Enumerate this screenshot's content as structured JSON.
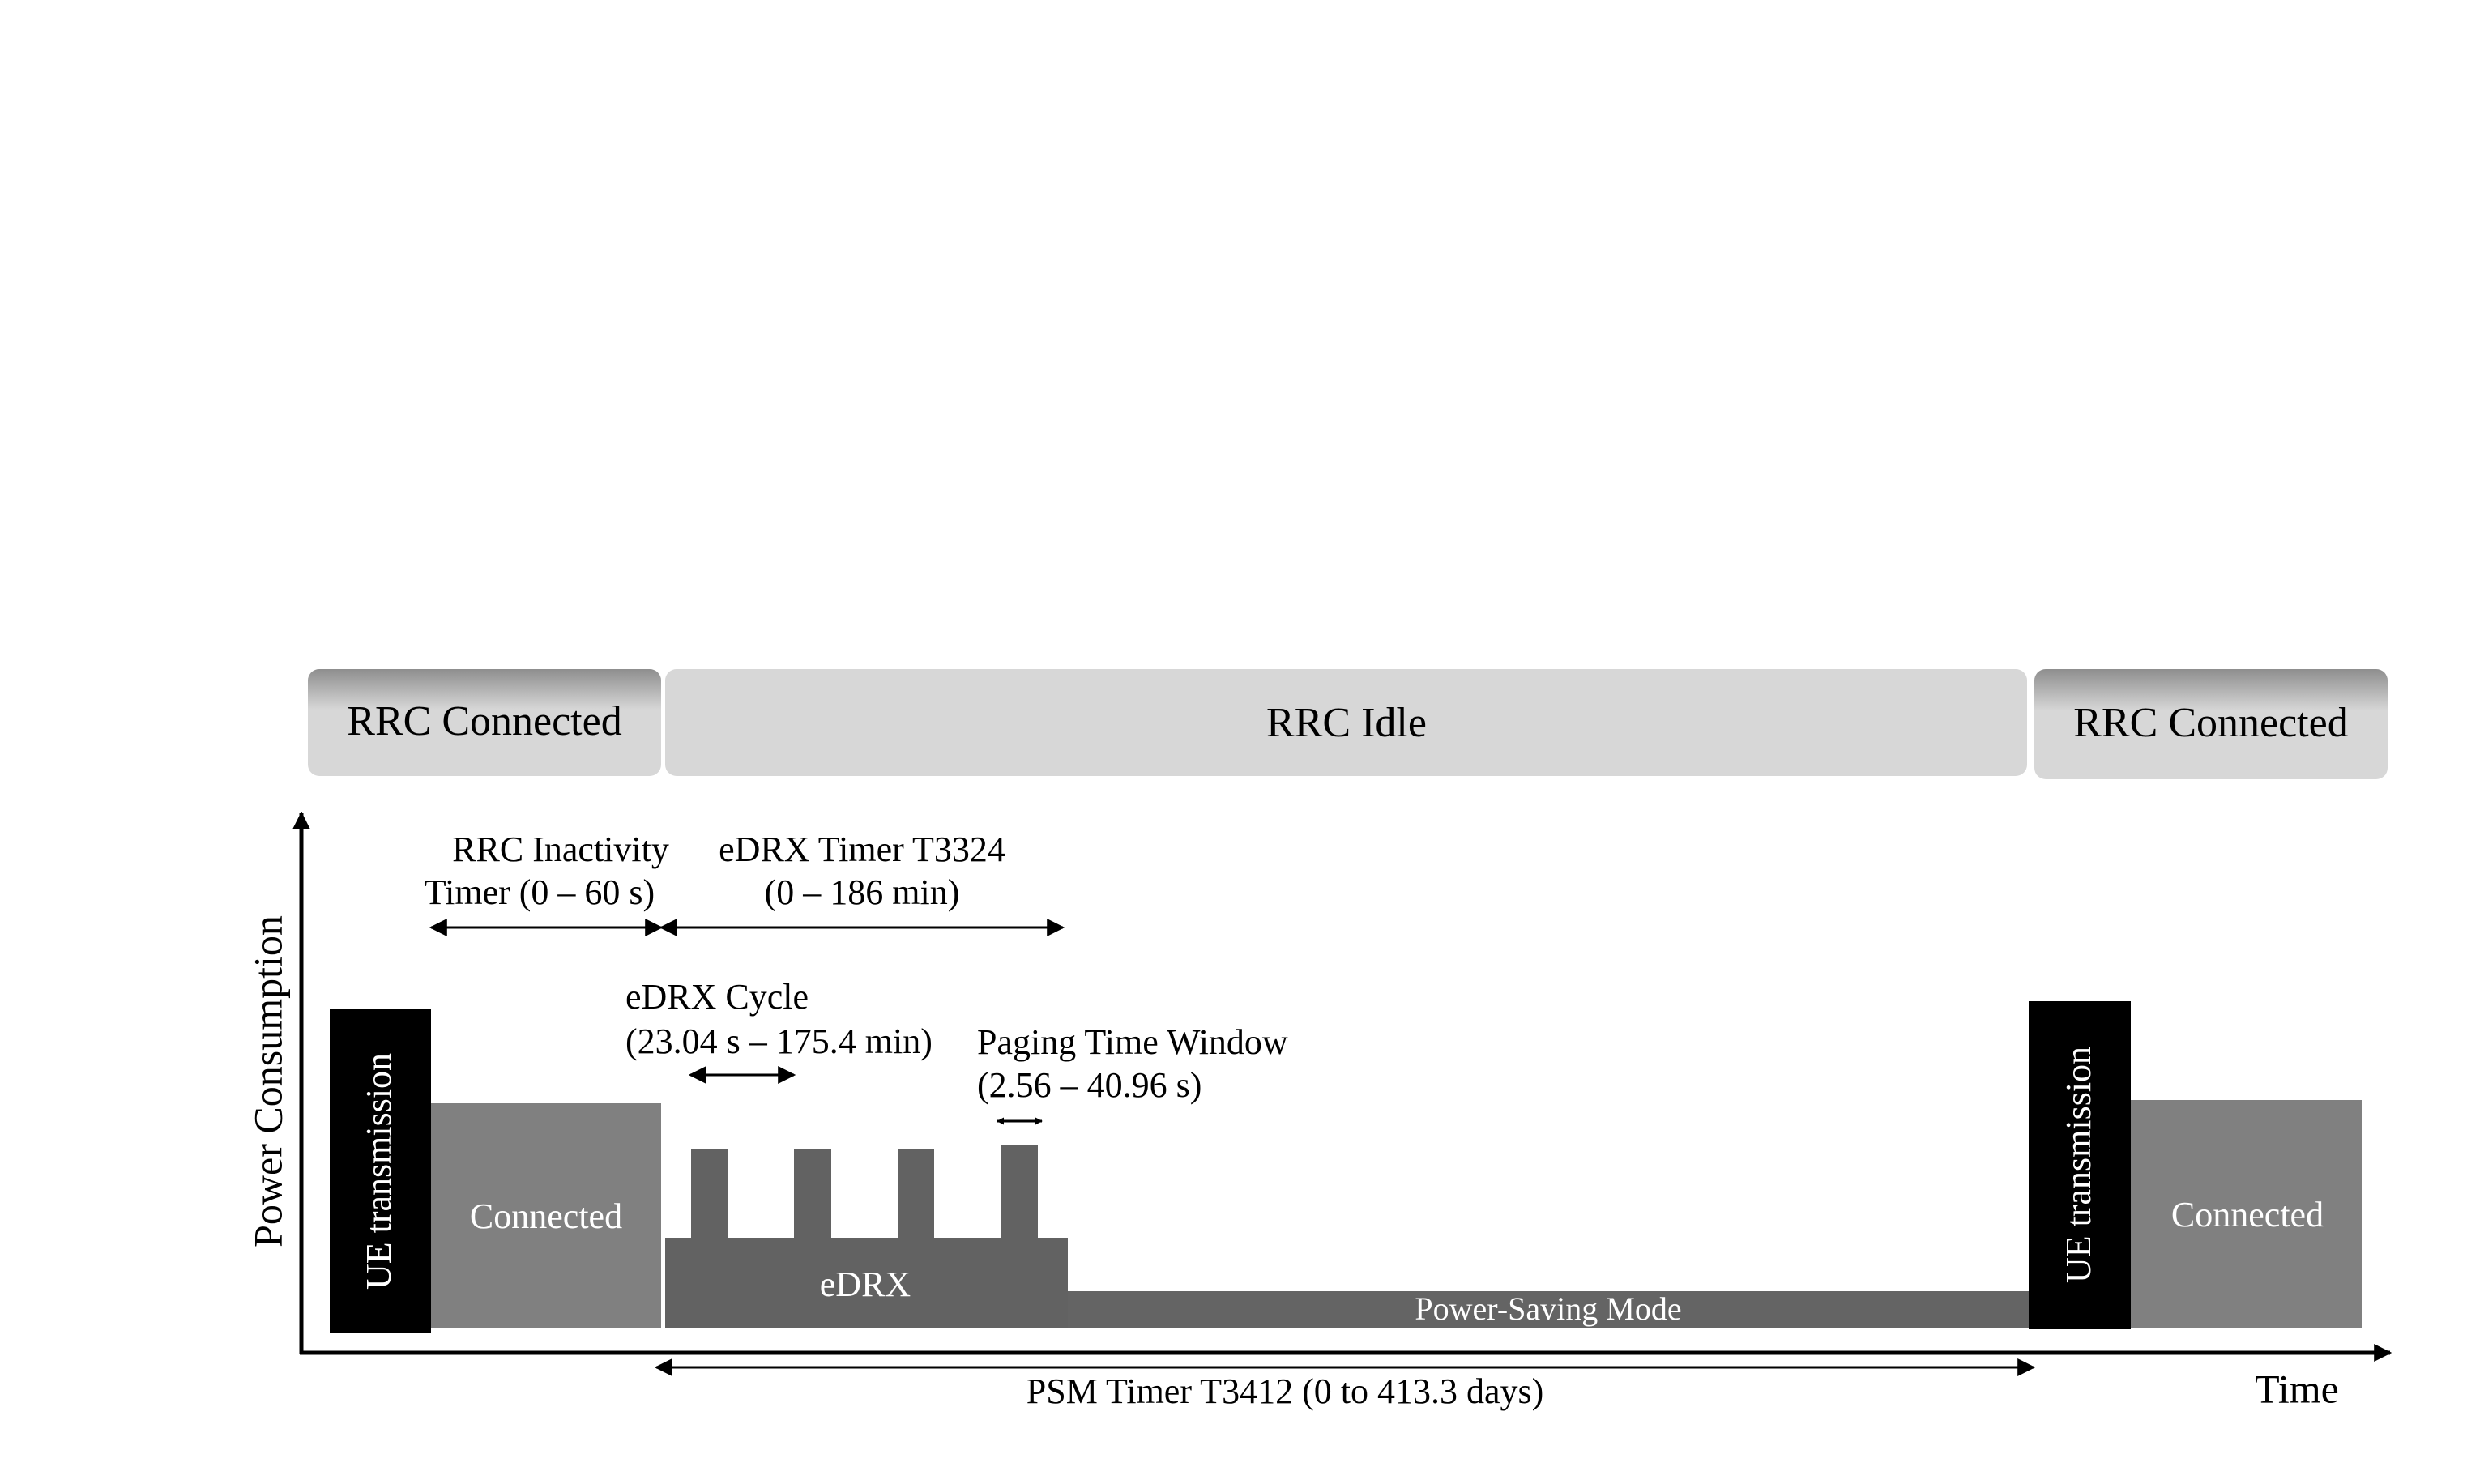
{
  "colors": {
    "header_light": "#d7d7d7",
    "header_dark": "#8e8e8e",
    "ue_block": "#000000",
    "connected_block": "#808080",
    "edrx_block": "#626262",
    "psm_block": "#646464",
    "axis": "#000000",
    "white_text": "#ffffff",
    "black_text": "#000000"
  },
  "headers": {
    "left": "RRC Connected",
    "middle": "RRC Idle",
    "right": "RRC Connected"
  },
  "axes": {
    "y_label": "Power Consumption",
    "x_label": "Time"
  },
  "blocks": {
    "ue_transmission_left": "UE transmission",
    "connected_left": "Connected",
    "edrx": "eDRX",
    "psm": "Power-Saving Mode",
    "ue_transmission_right": "UE transmission",
    "connected_right": "Connected"
  },
  "timers": {
    "rrc_inactivity": {
      "line1": "RRC Inactivity",
      "line2": "Timer (0 – 60 s)"
    },
    "edrx_timer": {
      "line1": "eDRX Timer T3324",
      "line2": "(0 – 186 min)"
    },
    "edrx_cycle": {
      "line1": "eDRX Cycle",
      "line2": "(23.04 s – 175.4 min)"
    },
    "paging_window": {
      "line1": "Paging Time Window",
      "line2": "(2.56 – 40.96 s)"
    },
    "psm_timer": "PSM Timer T3412 (0 to 413.3 days)"
  }
}
